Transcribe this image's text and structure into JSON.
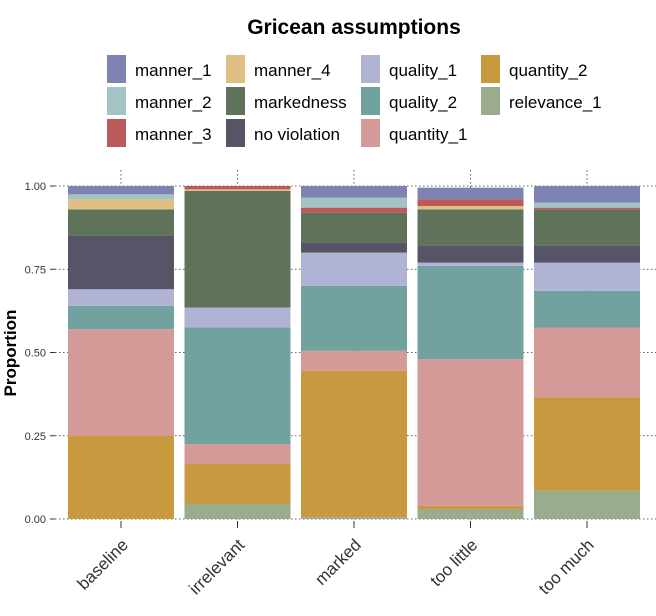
{
  "chart_data": {
    "type": "bar",
    "stacked": true,
    "legend_title": "Gricean assumptions",
    "legend_position": "top",
    "ylabel": "Proportion",
    "xlabel": "",
    "ylim": [
      0,
      1
    ],
    "yticks": [
      "0.00",
      "0.25",
      "0.50",
      "0.75",
      "1.00"
    ],
    "grid": true,
    "categories": [
      "baseline",
      "irrelevant",
      "marked",
      "too little",
      "too much"
    ],
    "series": [
      {
        "name": "relevance_1",
        "color": "#9bab8e",
        "values": [
          0.0,
          0.045,
          0.005,
          0.03,
          0.085
        ]
      },
      {
        "name": "quantity_2",
        "color": "#c9993f",
        "values": [
          0.25,
          0.12,
          0.44,
          0.01,
          0.28
        ]
      },
      {
        "name": "quantity_1",
        "color": "#d39a98",
        "values": [
          0.32,
          0.06,
          0.06,
          0.44,
          0.21
        ]
      },
      {
        "name": "quality_2",
        "color": "#72a2a0",
        "values": [
          0.07,
          0.35,
          0.195,
          0.28,
          0.11
        ]
      },
      {
        "name": "quality_1",
        "color": "#b0b3d3",
        "values": [
          0.05,
          0.06,
          0.1,
          0.01,
          0.085
        ]
      },
      {
        "name": "no violation",
        "color": "#565466",
        "values": [
          0.16,
          0.0,
          0.03,
          0.05,
          0.05
        ]
      },
      {
        "name": "markedness",
        "color": "#5f735b",
        "values": [
          0.08,
          0.35,
          0.09,
          0.11,
          0.11
        ]
      },
      {
        "name": "manner_4",
        "color": "#dfbf83",
        "values": [
          0.03,
          0.005,
          0.0,
          0.01,
          0.0
        ]
      },
      {
        "name": "manner_3",
        "color": "#bb5a58",
        "values": [
          0.0,
          0.01,
          0.015,
          0.02,
          0.005
        ]
      },
      {
        "name": "manner_2",
        "color": "#a2c4c3",
        "values": [
          0.015,
          0.0,
          0.03,
          0.0,
          0.015
        ]
      },
      {
        "name": "manner_1",
        "color": "#7e83b4",
        "values": [
          0.025,
          0.0,
          0.035,
          0.035,
          0.05
        ]
      }
    ],
    "legend_order": [
      "manner_1",
      "manner_2",
      "manner_3",
      "manner_4",
      "markedness",
      "no violation",
      "quality_1",
      "quality_2",
      "quantity_1",
      "quantity_2",
      "relevance_1"
    ]
  }
}
